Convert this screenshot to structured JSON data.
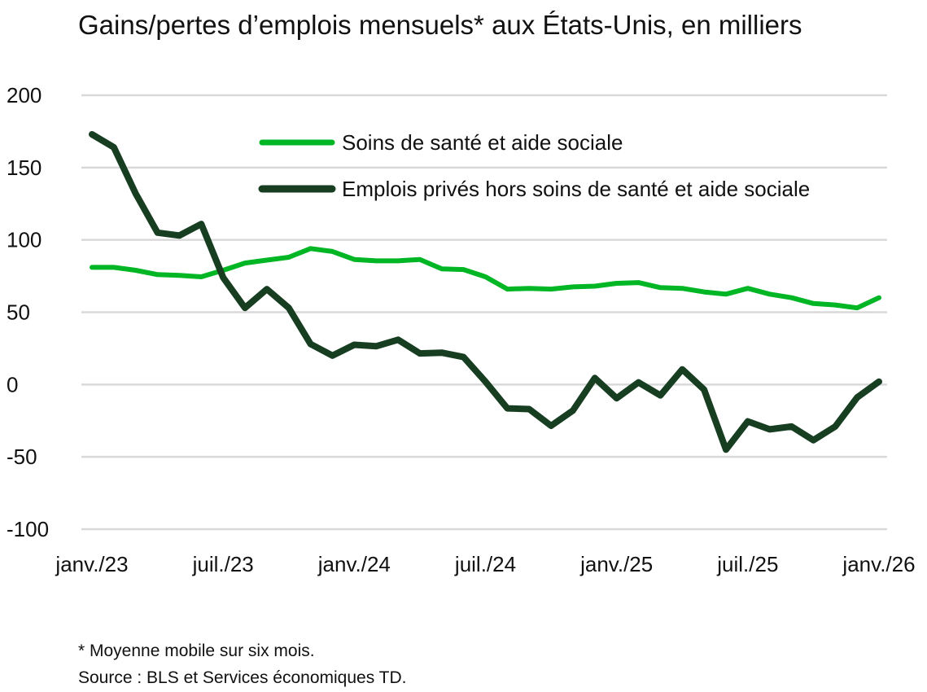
{
  "chart_data": {
    "type": "line",
    "title": "Gains/pertes d’emplois mensuels* aux États-Unis, en milliers",
    "xlabel": "",
    "ylabel": "",
    "x_start": "janv./23",
    "x_ticks": [
      "janv./23",
      "juil./23",
      "janv./24",
      "juil./24",
      "janv./25",
      "juil./25",
      "janv./26"
    ],
    "y_ticks": [
      200,
      150,
      100,
      50,
      0,
      -50,
      -100
    ],
    "ylim": [
      -100,
      200
    ],
    "grid": true,
    "legend_position": "top-center",
    "series": [
      {
        "name": "Soins de santé et aide sociale",
        "color": "#00b624",
        "values": [
          81,
          81,
          79,
          76,
          75.5,
          74.5,
          79,
          84,
          86,
          88,
          94,
          92,
          86.5,
          85.5,
          85.5,
          86.5,
          80,
          79.5,
          74.5,
          66,
          66.5,
          66,
          67.5,
          68,
          70,
          70.5,
          67,
          66.5,
          64,
          62.5,
          66.5,
          62.5,
          60,
          56,
          55,
          53,
          60
        ]
      },
      {
        "name": "Emplois privés hors soins de santé et aide sociale",
        "color": "#183e22",
        "values": [
          173,
          164,
          132,
          105,
          103,
          111,
          74,
          53,
          66,
          53,
          28,
          20,
          27.5,
          26.5,
          31,
          21.5,
          22,
          19,
          2,
          -16.5,
          -17,
          -28.5,
          -18,
          4.5,
          -9.5,
          1.5,
          -7.5,
          10.5,
          -3.5,
          -45,
          -25.5,
          -31,
          -29,
          -38.5,
          -29,
          -9,
          2
        ]
      }
    ]
  },
  "footnotes": {
    "note": "* Moyenne mobile sur six mois.",
    "source": "Source : BLS et Services économiques TD."
  }
}
